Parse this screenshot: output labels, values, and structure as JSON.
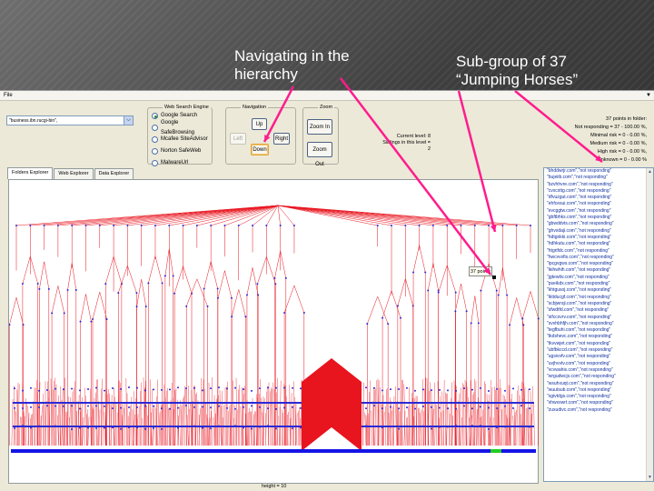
{
  "slide": {
    "caption_left_line1": "Navigating in the",
    "caption_left_line2": "hierarchy",
    "caption_right_line1": "Sub-group of  37",
    "caption_right_line2": "“Jumping Horses”",
    "arrow_color": "#ff1c8d"
  },
  "menu": {
    "file": "File"
  },
  "url_select": {
    "value": "\"business.ibn.rucgi-bin\","
  },
  "search_engine": {
    "legend": "Web Search Engine",
    "options": [
      {
        "label": "Google Search",
        "selected": true
      },
      {
        "label": "Google SafeBrowsing",
        "selected": false
      },
      {
        "label": "Mcafee SiteAdvisor",
        "selected": false
      },
      {
        "label": "Norton SafeWeb",
        "selected": false
      },
      {
        "label": "MalwareUrl",
        "selected": false
      }
    ]
  },
  "navigation": {
    "legend": "Navigation",
    "up": "Up",
    "left": "Left",
    "down": "Down",
    "right": "Right"
  },
  "zoom": {
    "legend": "Zoom",
    "zoom_in": "Zoom In",
    "zoom_out": "Zoom Out"
  },
  "level_info": {
    "current": "Current level: 8",
    "siblings": "Siblings in this level = 2"
  },
  "folder_stats": {
    "title": "37 points in folder:",
    "lines": [
      "Not responding = 37 - 100.00 %,",
      "Minimal risk = 0 - 0.00 %,",
      "Medium risk = 0 - 0.00 %,",
      "High risk = 0 - 0.00 %,",
      "Unknown = 0 - 0.00 %"
    ]
  },
  "tabs": [
    "Folders Explorer",
    "Web Explorer",
    "Data Explorer"
  ],
  "tree": {
    "tooltip": "37 points",
    "edge_color": "#e8141e",
    "node_color": "#2a2ad6",
    "bar_color": "#1414e6",
    "highlight_color": "#22cc22"
  },
  "status": {
    "height": "height = 10"
  },
  "url_list": [
    "\"bhddwrjr.com\",\"not responding\"",
    "\"bujeiib.com\",\"not responding\"",
    "\"bzvhhvre.com\",\"not responding\"",
    "\"cvxcxttg.com\",\"not responding\"",
    "\"dfvuzgut.com\",\"not responding\"",
    "\"ehfcesui.com\",\"not responding\"",
    "\"evcggtw.com\",\"not responding\"",
    "\"gbftbhks.com\",\"not responding\"",
    "\"gbwddvts.com\",\"not responding\"",
    "\"ghvxdaji.com\",\"not responding\"",
    "\"hdtgnkki.com\",\"not responding\"",
    "\"hdhkutu.com\",\"not responding\"",
    "\"htgrifdc.com\",\"not responding\"",
    "\"hwcvvxfis.com\",\"not responding\"",
    "\"ipcgvgws.com\",\"not responding\"",
    "\"ikihwhih.com\",\"not responding\"",
    "\"jgtewitv.com\",\"not responding\"",
    "\"pseikdx.com\",\"not responding\"",
    "\"khtgusoj.com\",\"not responding\"",
    "\"iktiducgf.com\",\"not responding\"",
    "\"scbjwrsji.com\",\"not responding\"",
    "\"sfwdtfd.com\",\"not responding\"",
    "\"sifccxvrv.com\",\"not responding\"",
    "\"svvhbhfjh.com\",\"not responding\"",
    "\"tegfbuhi.com\",\"not responding\"",
    "\"tkdshevc.com\",\"not responding\"",
    "\"tkvvwjet.com\",\"not responding\"",
    "\"ubfbkccd.com\",\"not responding\"",
    "\"ugsivvfv.com\",\"not responding\"",
    "\"uvjhvvtv.com\",\"not responding\"",
    "\"vcvwahis.com\",\"not responding\"",
    "\"wrgudwcjs.com\",\"not responding\"",
    "\"wsuhxuqt.com\",\"not responding\"",
    "\"wuutsub.com\",\"not responding\"",
    "\"xgivtdgs.com\",\"not responding\"",
    "\"xhwxxwrt.com\",\"not responding\"",
    "\"zuxudivc.com\",\"not responding\""
  ]
}
